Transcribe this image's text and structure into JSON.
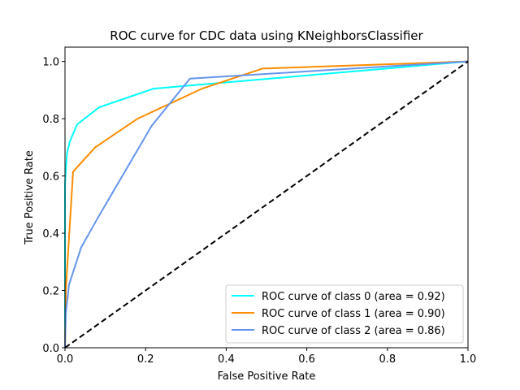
{
  "chart_data": {
    "type": "line",
    "title": "ROC curve for CDC data using KNeighborsClassifier",
    "xlabel": "False Positive Rate",
    "ylabel": "True Positive Rate",
    "xlim": [
      0.0,
      1.0
    ],
    "ylim": [
      0.0,
      1.05
    ],
    "xticks": [
      0.0,
      0.2,
      0.4,
      0.6,
      0.8,
      1.0
    ],
    "xtick_labels": [
      "0.0",
      "0.2",
      "0.4",
      "0.6",
      "0.8",
      "1.0"
    ],
    "yticks": [
      0.0,
      0.2,
      0.4,
      0.6,
      0.8,
      1.0
    ],
    "ytick_labels": [
      "0.0",
      "0.2",
      "0.4",
      "0.6",
      "0.8",
      "1.0"
    ],
    "grid": false,
    "legend_position": "lower-right",
    "series": [
      {
        "name": "ROC curve of class 0 (area = 0.92)",
        "color": "#00ffff",
        "x": [
          0.0,
          0.0,
          0.005,
          0.012,
          0.03,
          0.085,
          0.22,
          0.55,
          1.0
        ],
        "y": [
          0.0,
          0.57,
          0.68,
          0.72,
          0.78,
          0.84,
          0.905,
          0.945,
          1.0
        ]
      },
      {
        "name": "ROC curve of class 1 (area = 0.90)",
        "color": "#ff8c00",
        "x": [
          0.0,
          0.002,
          0.02,
          0.075,
          0.18,
          0.34,
          0.49,
          1.0
        ],
        "y": [
          0.0,
          0.2,
          0.615,
          0.7,
          0.8,
          0.905,
          0.975,
          1.0
        ]
      },
      {
        "name": "ROC curve of class 2 (area = 0.86)",
        "color": "#6495ed",
        "x": [
          0.0,
          0.002,
          0.01,
          0.04,
          0.08,
          0.215,
          0.31,
          1.0
        ],
        "y": [
          0.0,
          0.12,
          0.22,
          0.35,
          0.45,
          0.775,
          0.94,
          1.0
        ]
      },
      {
        "name": "chance",
        "color": "#000000",
        "style": "dashed",
        "x": [
          0.0,
          1.0
        ],
        "y": [
          0.0,
          1.0
        ]
      }
    ]
  }
}
